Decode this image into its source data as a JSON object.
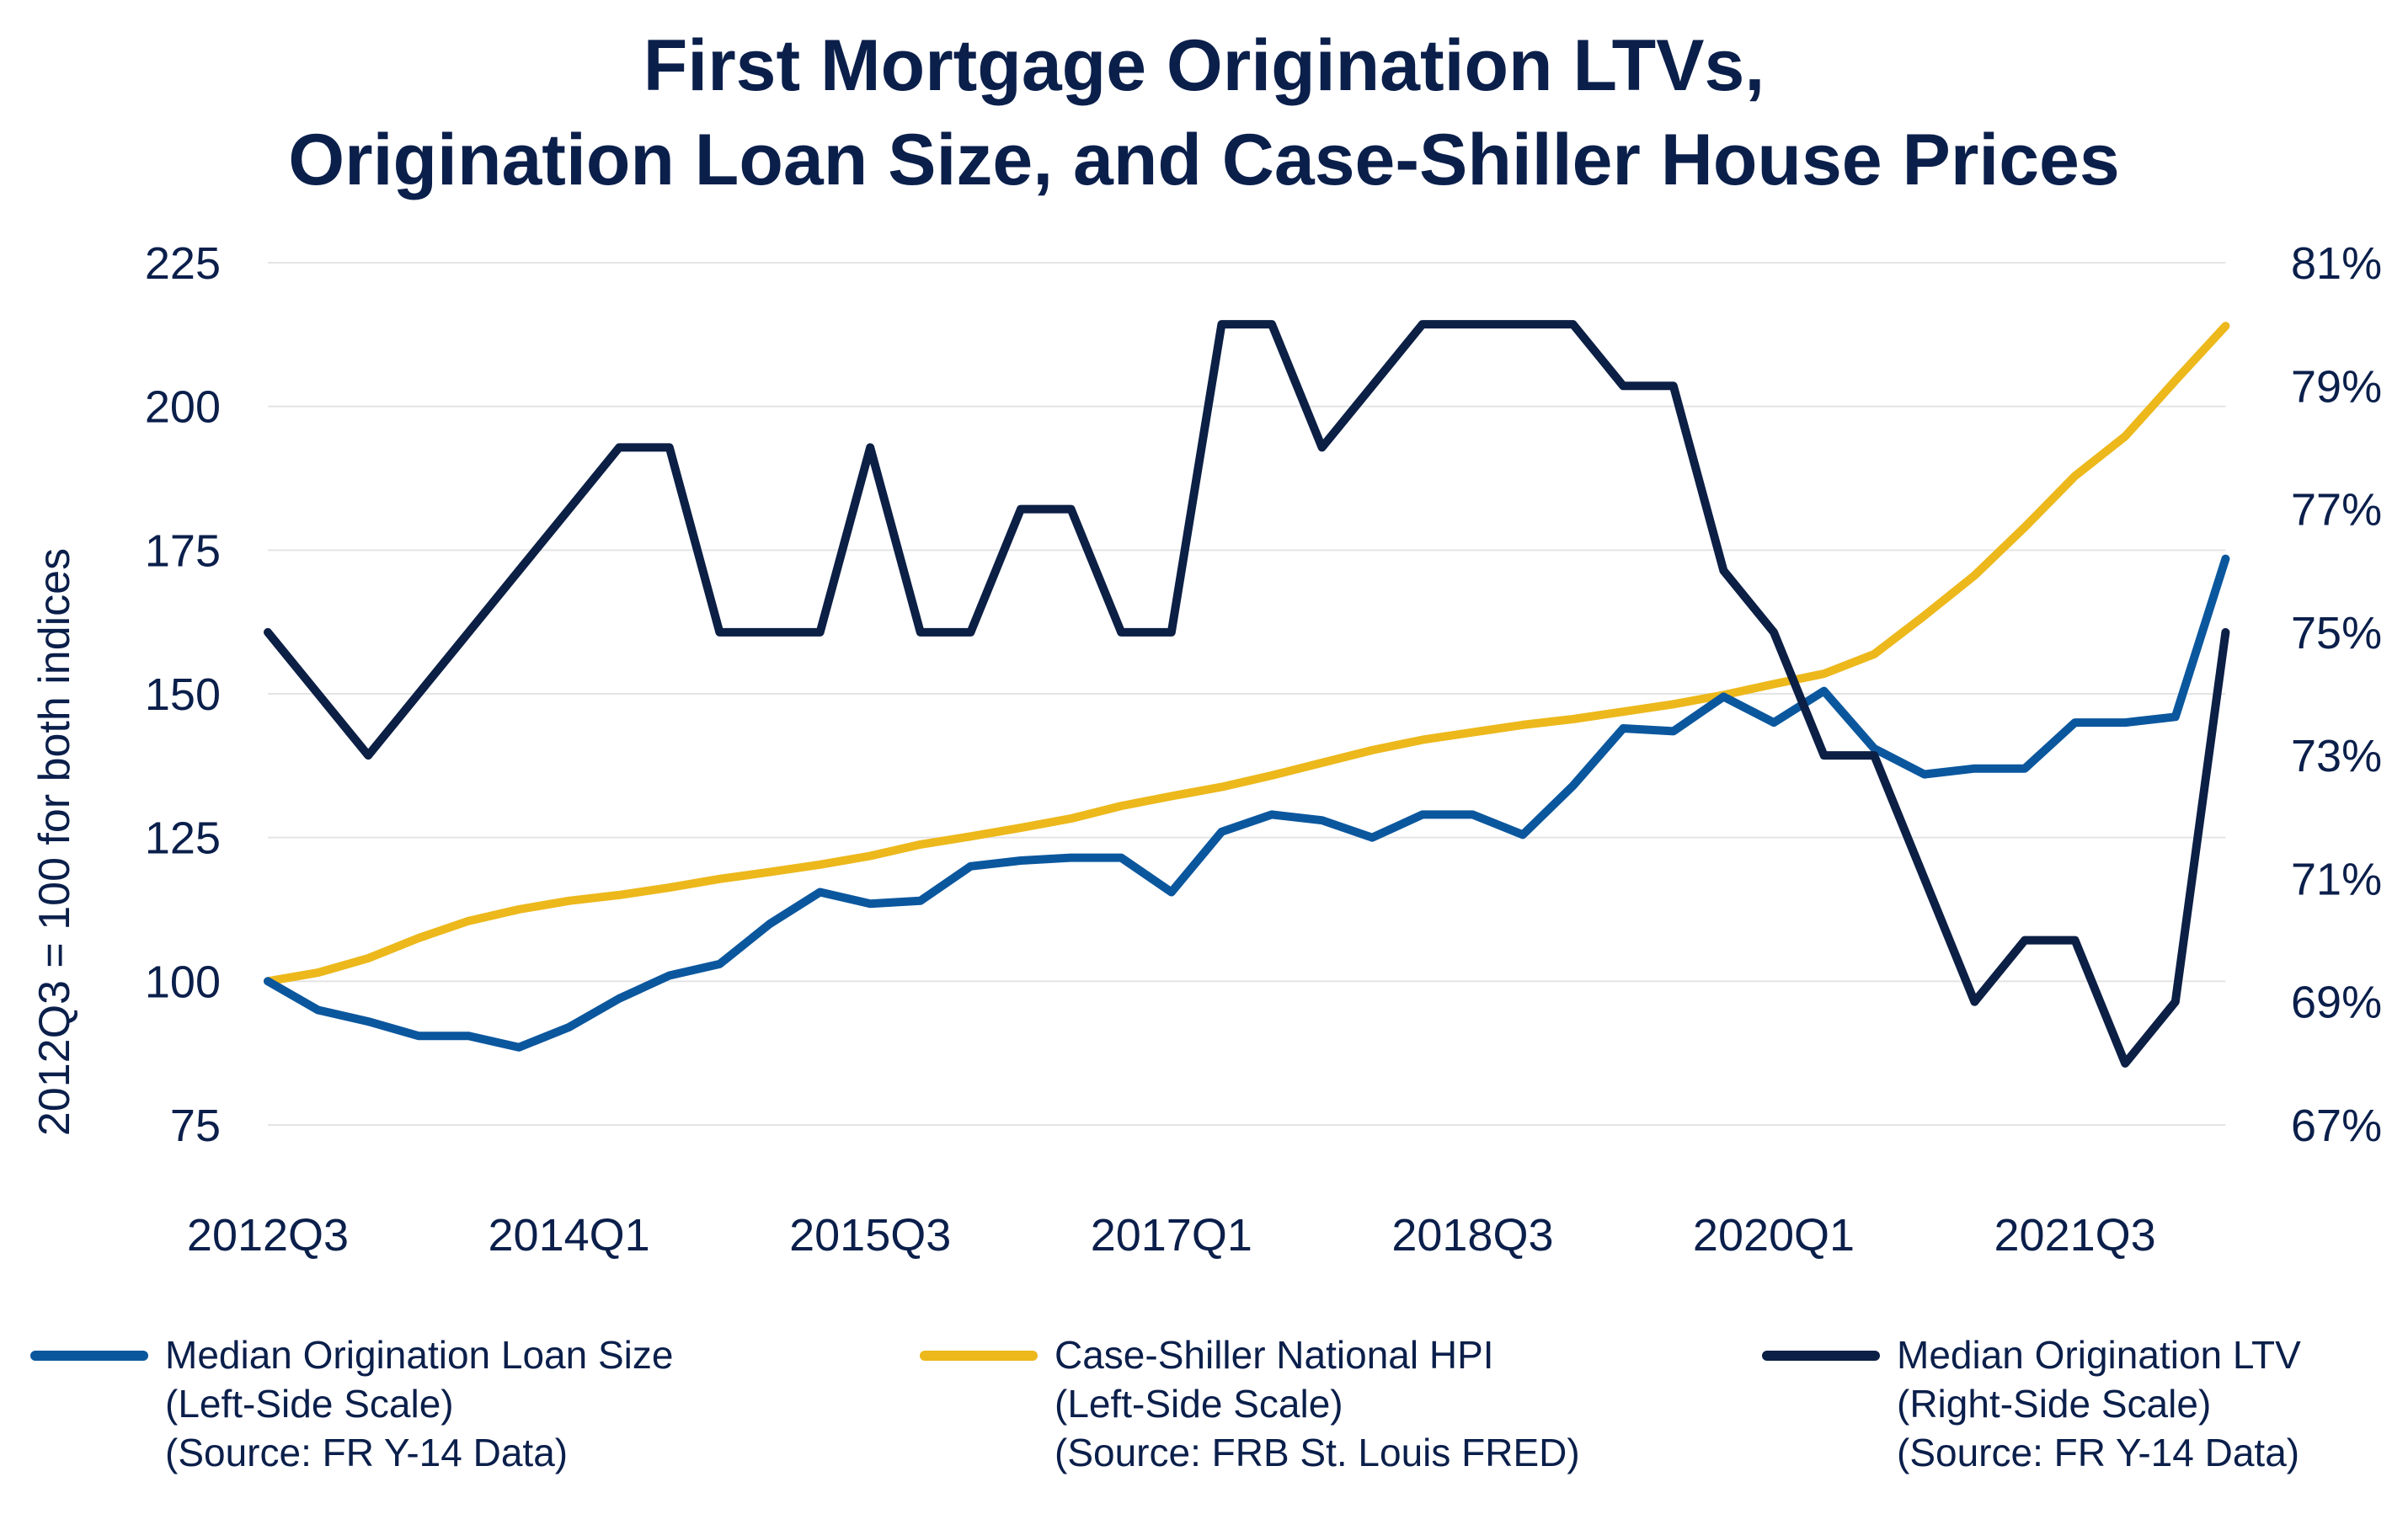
{
  "chart_data": {
    "type": "line",
    "title": [
      "First Mortgage Origination LTVs,",
      "Origination Loan Size, and Case-Shiller House Prices"
    ],
    "ylabel_left": "2012Q3 = 100 for both indices",
    "y_left": {
      "range": [
        75,
        225
      ],
      "ticks": [
        "75",
        "100",
        "125",
        "150",
        "175",
        "200",
        "225"
      ]
    },
    "y_right": {
      "range": [
        67,
        81
      ],
      "ticks": [
        "67%",
        "69%",
        "71%",
        "73%",
        "75%",
        "77%",
        "79%",
        "81%"
      ]
    },
    "x": [
      "2012Q3",
      "2012Q4",
      "2013Q1",
      "2013Q2",
      "2013Q3",
      "2013Q4",
      "2014Q1",
      "2014Q2",
      "2014Q3",
      "2014Q4",
      "2015Q1",
      "2015Q2",
      "2015Q3",
      "2015Q4",
      "2016Q1",
      "2016Q2",
      "2016Q3",
      "2016Q4",
      "2017Q1",
      "2017Q2",
      "2017Q3",
      "2017Q4",
      "2018Q1",
      "2018Q2",
      "2018Q3",
      "2018Q4",
      "2019Q1",
      "2019Q2",
      "2019Q3",
      "2019Q4",
      "2020Q1",
      "2020Q2",
      "2020Q3",
      "2020Q4",
      "2021Q1",
      "2021Q2",
      "2021Q3",
      "2021Q4",
      "2022Q1",
      "2022Q2"
    ],
    "x_ticks": [
      "2012Q3",
      "2014Q1",
      "2015Q3",
      "2017Q1",
      "2018Q3",
      "2020Q1",
      "2021Q3"
    ],
    "grid": true,
    "legend_position": "bottom",
    "series": [
      {
        "name": "Median Origination Loan Size",
        "legend_lines": [
          "Median Origination Loan Size",
          "(Left-Side Scale)",
          "(Source: FR Y-14 Data)"
        ],
        "axis": "left",
        "color": "#0b579e",
        "values": [
          100,
          95,
          93,
          90.5,
          90.5,
          88.5,
          92,
          97,
          101,
          103,
          110,
          115.5,
          113.5,
          114,
          120,
          121,
          121.5,
          121.5,
          115.5,
          126,
          129,
          128,
          125,
          129,
          129,
          125.5,
          134,
          144,
          143.5,
          149.5,
          145,
          150.5,
          140.5,
          136,
          137,
          137,
          145,
          145,
          146,
          173.5
        ]
      },
      {
        "name": "Case-Shiller National HPI",
        "legend_lines": [
          "Case-Shiller National HPI",
          "(Left-Side Scale)",
          "(Source: FRB St. Louis FRED)"
        ],
        "axis": "left",
        "color": "#ecb81b",
        "values": [
          100,
          101.5,
          104,
          107.5,
          110.5,
          112.5,
          114,
          115,
          116.3,
          117.8,
          119,
          120.3,
          121.8,
          123.8,
          125.2,
          126.7,
          128.3,
          130.5,
          132.2,
          133.8,
          135.8,
          138,
          140.2,
          142,
          143.3,
          144.6,
          145.6,
          146.9,
          148.2,
          149.8,
          151.7,
          153.5,
          156.9,
          163.6,
          170.6,
          179,
          187.9,
          194.8,
          204.5,
          214
        ]
      },
      {
        "name": "Median Origination LTV",
        "legend_lines": [
          "Median Origination LTV",
          "(Right-Side Scale)",
          "(Source: FR Y-14 Data)"
        ],
        "axis": "right",
        "color": "#0c1f45",
        "values": [
          75,
          74,
          73,
          74,
          75,
          76,
          77,
          78,
          78,
          75,
          75,
          75,
          78,
          75,
          75,
          77,
          77,
          75,
          75,
          80,
          80,
          78,
          79,
          80,
          80,
          80,
          80,
          79,
          79,
          76,
          75,
          73,
          73,
          71,
          69,
          70,
          70,
          68,
          69,
          75
        ]
      }
    ]
  }
}
